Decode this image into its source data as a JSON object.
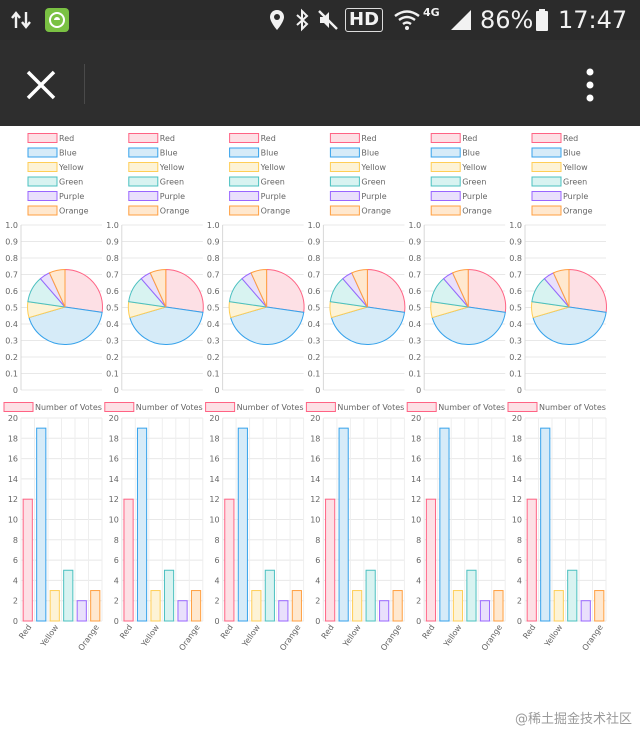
{
  "status_bar": {
    "hd_label": "HD",
    "network_label": "4G",
    "battery_percent": "86%",
    "time": "17:47",
    "icons": [
      "data-transfer-icon",
      "app-notification-icon",
      "location-icon",
      "bluetooth-icon",
      "mute-icon",
      "wifi-icon",
      "signal-icon",
      "battery-icon"
    ]
  },
  "app_bar": {
    "close_icon": "close-icon",
    "menu_icon": "more-vert-icon"
  },
  "chart_data": {
    "pie": {
      "type": "pie",
      "legend": [
        "Red",
        "Blue",
        "Yellow",
        "Green",
        "Purple",
        "Orange"
      ],
      "values": [
        12,
        19,
        3,
        5,
        2,
        3
      ],
      "ylim": [
        0,
        1
      ],
      "yticks": [
        "0",
        "0.1",
        "0.2",
        "0.3",
        "0.4",
        "0.5",
        "0.6",
        "0.7",
        "0.8",
        "0.9",
        "1.0"
      ],
      "legend_position": "top"
    },
    "bar": {
      "type": "bar",
      "legend_label": "Number of Votes",
      "categories": [
        "Red",
        "Blue",
        "Yellow",
        "Green",
        "Purple",
        "Orange"
      ],
      "x_tick_labels_shown": [
        "Red",
        "Yellow",
        "Orange"
      ],
      "values": [
        12,
        19,
        3,
        5,
        2,
        3
      ],
      "ylim": [
        0,
        20
      ],
      "yticks": [
        "0",
        "2",
        "4",
        "6",
        "8",
        "10",
        "12",
        "14",
        "16",
        "18",
        "20"
      ],
      "legend_position": "top"
    },
    "panel_count": 6
  },
  "colors": {
    "series_fill": [
      "#fde0e5",
      "#d6ebf8",
      "#fdf3d6",
      "#d8f3f1",
      "#e9e0fc",
      "#ffe8cf"
    ],
    "series_stroke": [
      "#ff6384",
      "#36a2eb",
      "#ffce56",
      "#4bc0c0",
      "#9966ff",
      "#ff9f40"
    ],
    "status_bar_bg": "#2b2b2b",
    "app_bar_bg": "#2e2e2e",
    "accent_app_icon": "#7ac143"
  },
  "watermark": "@稀土掘金技术社区"
}
